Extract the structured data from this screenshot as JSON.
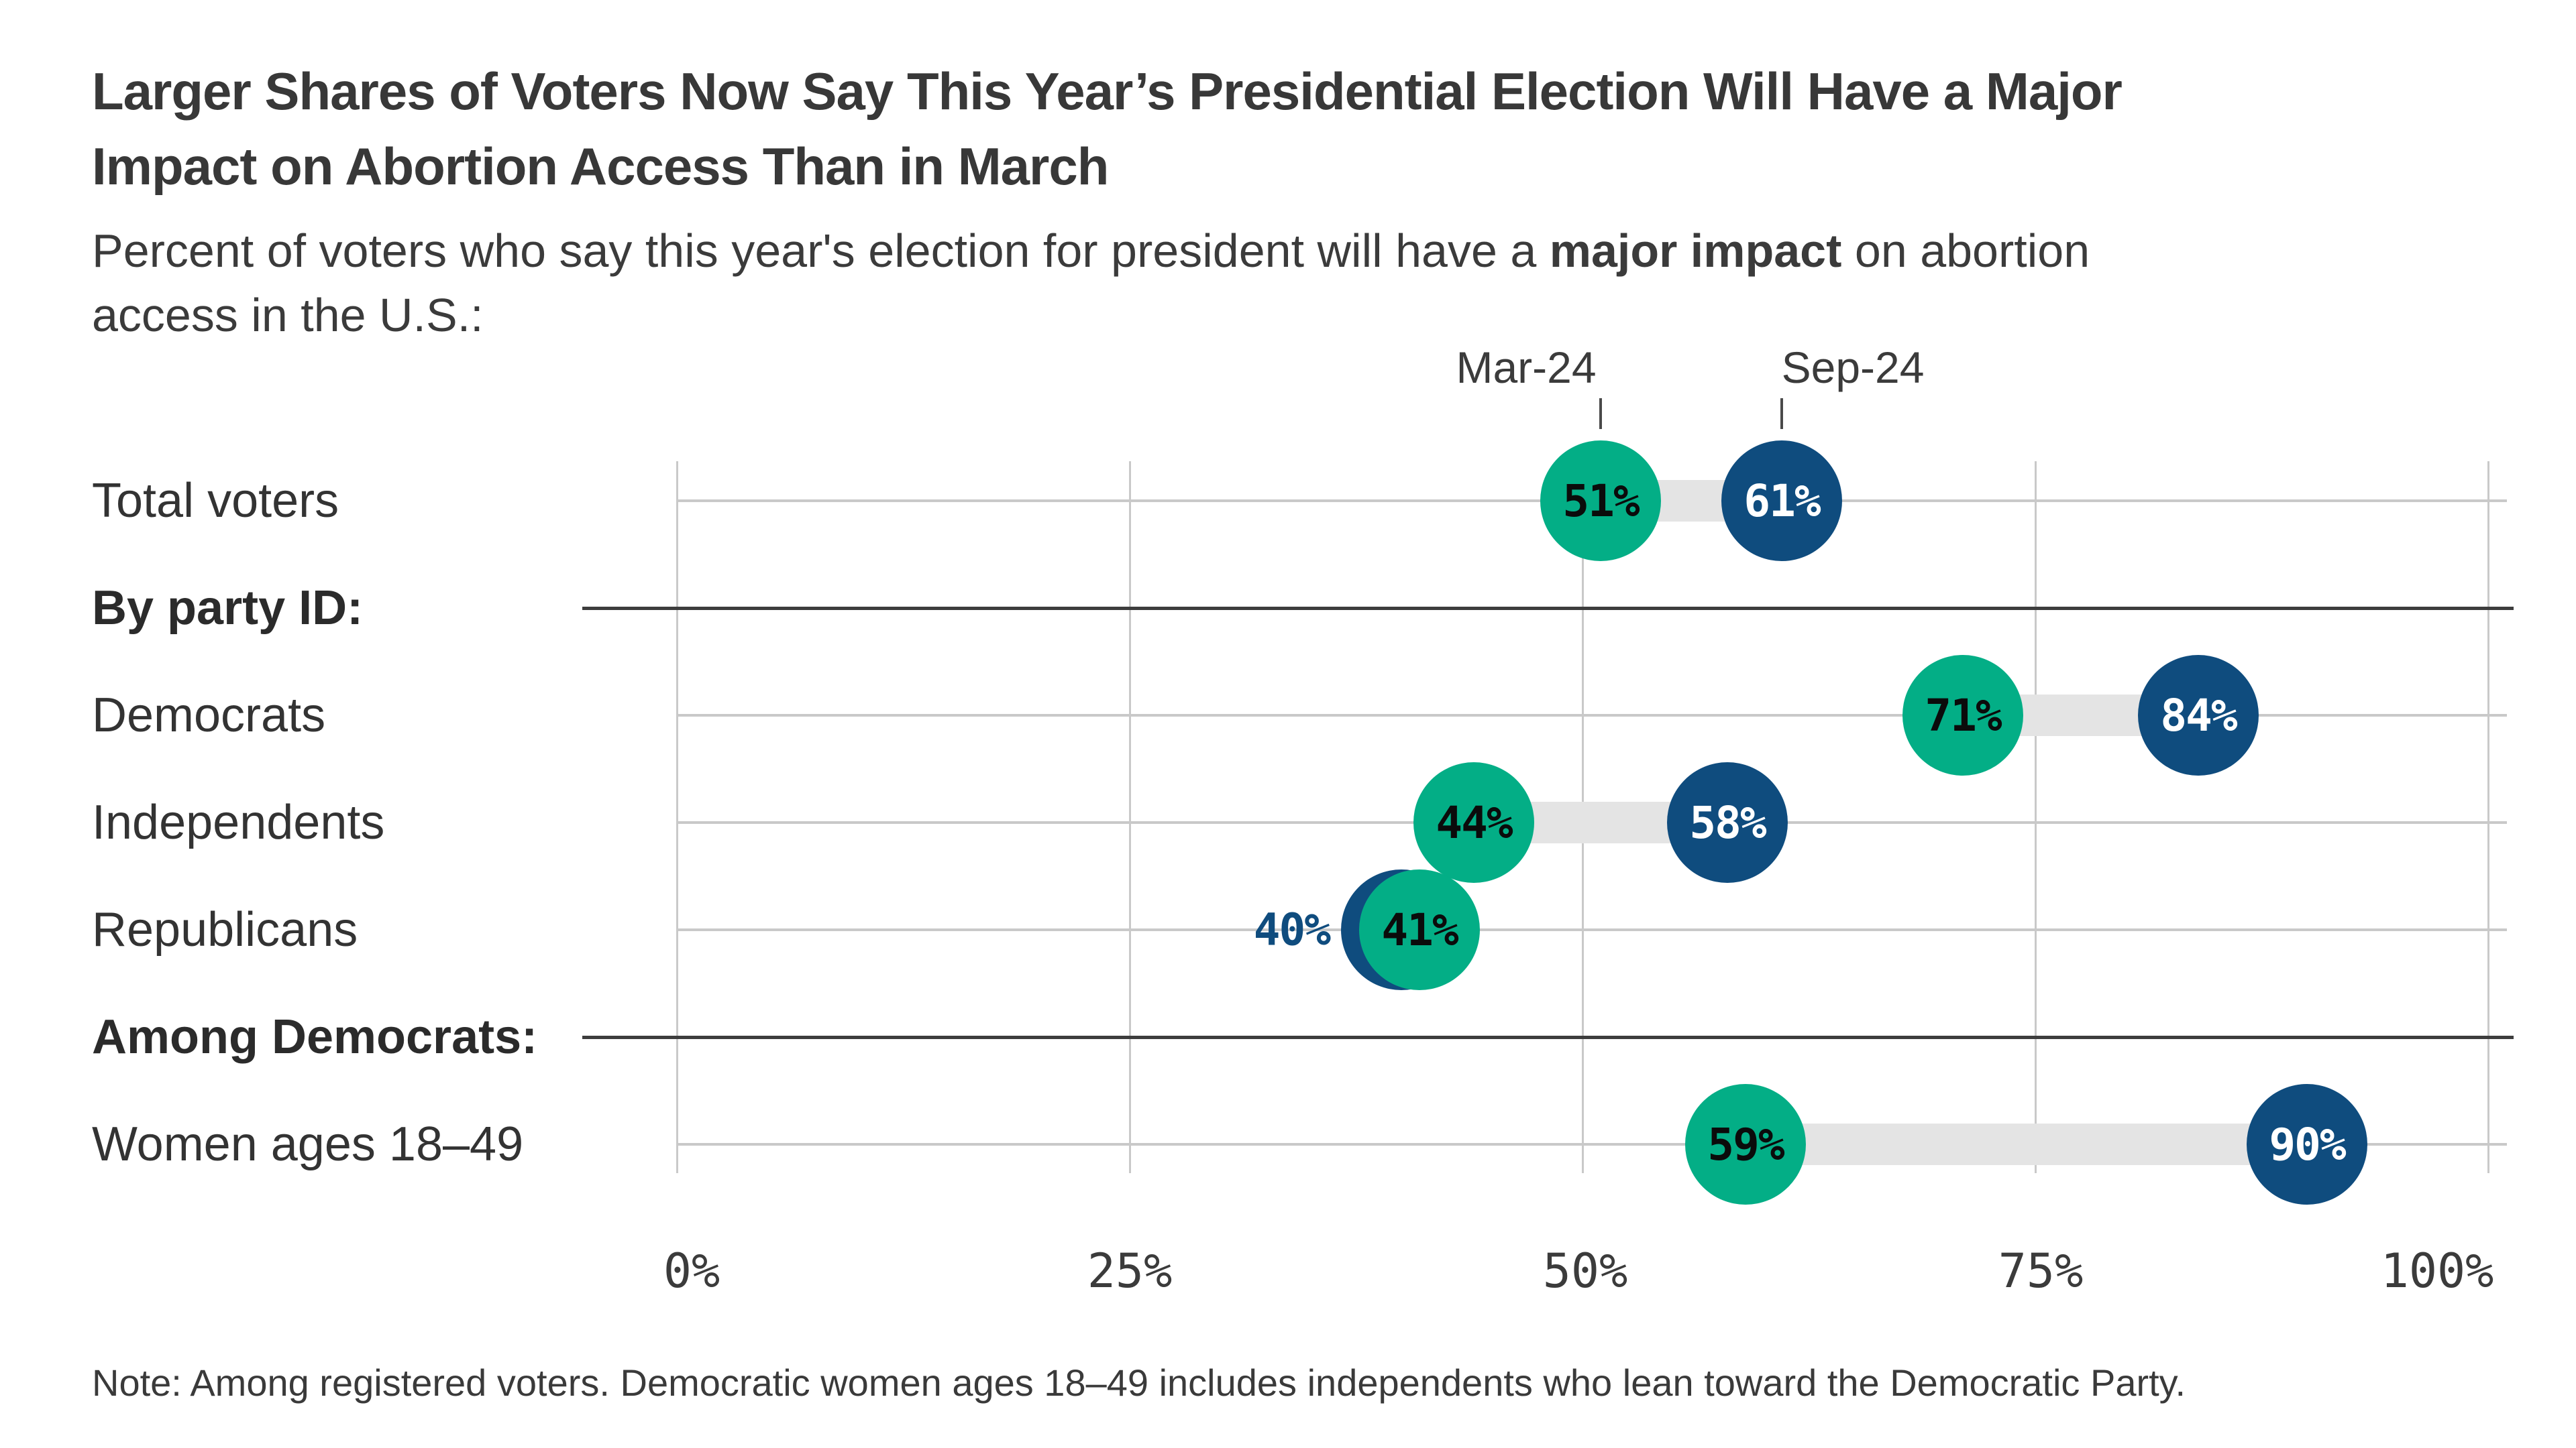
{
  "title": {
    "line1": "Larger Shares of Voters Now Say This Year’s Presidential Election Will Have a Major",
    "line2": "Impact on Abortion Access Than in March"
  },
  "subtitle": {
    "pre": "Percent of voters who say this year's election for president will have a ",
    "bold": "major impact",
    "post": " on abortion",
    "line2": "access in the U.S.:"
  },
  "legend": {
    "items": [
      {
        "label": "Mar-24"
      },
      {
        "label": "Sep-24"
      }
    ]
  },
  "colors": {
    "mar_green": "#03ae86",
    "sep_blue": "#0f4c7e",
    "mar_value_text": "#0b0b0b",
    "sep_value_text": "#ffffff",
    "connector_gray": "#e4e4e4",
    "grid_gray": "#c9c9c9",
    "divider_dark": "#3d3d3d",
    "text_dark": "#383838"
  },
  "x_axis": {
    "ticks": [
      {
        "label": "0%",
        "value": 0
      },
      {
        "label": "25%",
        "value": 25
      },
      {
        "label": "50%",
        "value": 50
      },
      {
        "label": "75%",
        "value": 75
      },
      {
        "label": "100%",
        "value": 100
      }
    ]
  },
  "rows": [
    {
      "kind": "data",
      "label": "Total voters",
      "mar": 51,
      "sep": 61
    },
    {
      "kind": "section",
      "label": "By party ID:"
    },
    {
      "kind": "data",
      "label": "Democrats",
      "mar": 71,
      "sep": 84
    },
    {
      "kind": "data",
      "label": "Independents",
      "mar": 44,
      "sep": 58
    },
    {
      "kind": "data",
      "label": "Republicans",
      "mar": 41,
      "sep": 40,
      "sep_label_outside": true
    },
    {
      "kind": "section",
      "label": "Among Democrats:"
    },
    {
      "kind": "data",
      "label": "Women ages 18–49",
      "mar": 59,
      "sep": 90
    }
  ],
  "note": "Note: Among registered voters. Democratic women ages 18–49 includes independents who lean toward the Democratic Party.",
  "chart_data": {
    "type": "dumbbell",
    "title": "Larger Shares of Voters Now Say This Year’s Presidential Election Will Have a Major Impact on Abortion Access Than in March",
    "subtitle": "Percent of voters who say this year's election for president will have a major impact on abortion access in the U.S.:",
    "categories": [
      "Total voters",
      "Democrats",
      "Independents",
      "Republicans",
      "Women ages 18–49"
    ],
    "series": [
      {
        "name": "Mar-24",
        "color": "#03ae86",
        "values": [
          51,
          71,
          44,
          41,
          59
        ]
      },
      {
        "name": "Sep-24",
        "color": "#0f4c7e",
        "values": [
          61,
          84,
          58,
          40,
          90
        ]
      }
    ],
    "sections": [
      {
        "label": "By party ID:",
        "position": "before Democrats"
      },
      {
        "label": "Among Democrats:",
        "position": "before Women ages 18–49"
      }
    ],
    "xlabel": "",
    "ylabel": "",
    "xlim": [
      0,
      100
    ],
    "x_tick_labels": [
      "0%",
      "25%",
      "50%",
      "75%",
      "100%"
    ],
    "grid": "vertical",
    "legend_position": "top",
    "note": "Note: Among registered voters. Democratic women ages 18–49 includes independents who lean toward the Democratic Party."
  }
}
